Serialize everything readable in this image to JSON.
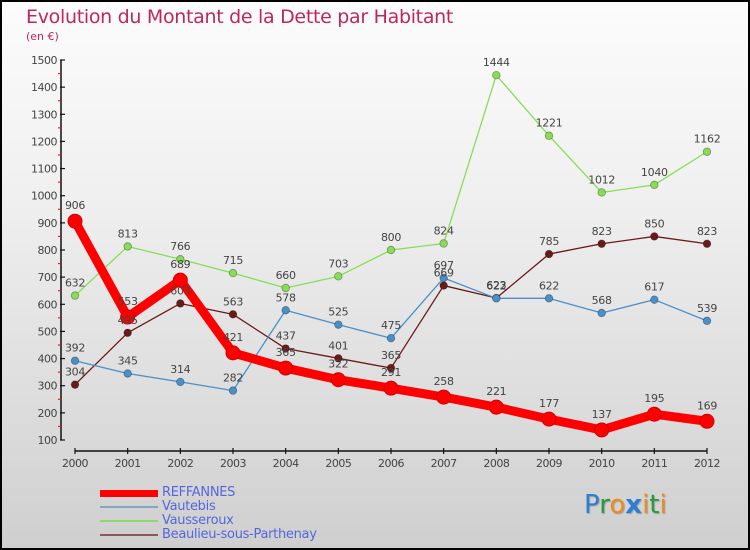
{
  "chart_data": {
    "type": "line",
    "title": "Evolution du Montant de la Dette par Habitant",
    "subtitle": "(en €)",
    "xlabel": "",
    "ylabel": "",
    "x": [
      "2000",
      "2001",
      "2002",
      "2003",
      "2004",
      "2005",
      "2006",
      "2007",
      "2008",
      "2009",
      "2010",
      "2011",
      "2012"
    ],
    "ylim": [
      100,
      1500
    ],
    "yticks": [
      100,
      200,
      300,
      400,
      500,
      600,
      700,
      800,
      900,
      1000,
      1100,
      1200,
      1300,
      1400,
      1500
    ],
    "grid": false,
    "legend_position": "bottom-left",
    "series": [
      {
        "name": "REFFANNES",
        "color": "#ff0000",
        "values": [
          906,
          553,
          689,
          421,
          365,
          322,
          291,
          258,
          221,
          177,
          137,
          195,
          169
        ]
      },
      {
        "name": "Vautebis",
        "color": "#4a90c8",
        "values": [
          392,
          345,
          314,
          282,
          578,
          525,
          475,
          697,
          622,
          622,
          568,
          617,
          539
        ]
      },
      {
        "name": "Vausseroux",
        "color": "#88dd55",
        "values": [
          632,
          813,
          766,
          715,
          660,
          703,
          800,
          824,
          1444,
          1221,
          1012,
          1040,
          1162
        ]
      },
      {
        "name": "Beaulieu-sous-Parthenay",
        "color": "#6b1a1a",
        "values": [
          304,
          495,
          603,
          563,
          437,
          401,
          365,
          669,
          623,
          785,
          823,
          850,
          823
        ]
      }
    ]
  },
  "logo": {
    "letters": [
      "P",
      "r",
      "o",
      "x",
      "i",
      "t",
      "i"
    ],
    "colors": [
      "#2a7fd4",
      "#2a9a3a",
      "#f08a1c",
      "#2a7fd4",
      "#f08a1c",
      "#2a9a3a",
      "#f08a1c"
    ]
  },
  "colors": {
    "title": "#c0265e",
    "legend_text": "#5566dd"
  }
}
